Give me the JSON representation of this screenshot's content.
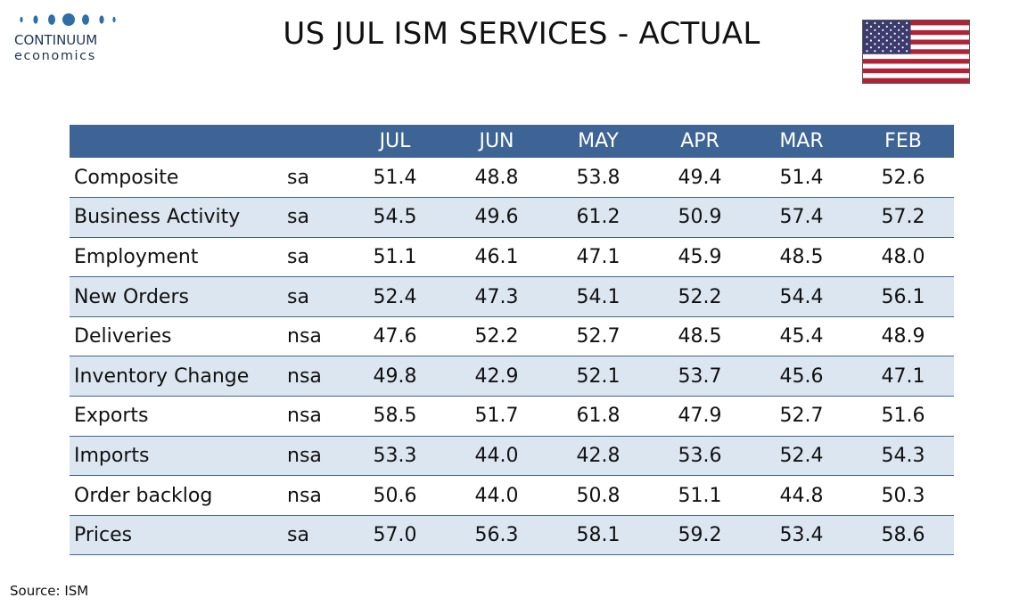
{
  "brand": {
    "name": "CONTINUUM",
    "sub": "economics",
    "color": "#1d3556",
    "dot_color": "#2f6ea8"
  },
  "title": "US JUL ISM SERVICES - ACTUAL",
  "flag": {
    "icon": "us-flag-icon",
    "red": "#b22234",
    "blue": "#3c3b6e"
  },
  "colors": {
    "header_bg": "#3e6496",
    "band_bg": "#dce6f1"
  },
  "chart_data": {
    "type": "table",
    "columns": [
      "",
      "",
      "JUL",
      "JUN",
      "MAY",
      "APR",
      "MAR",
      "FEB"
    ],
    "rows": [
      {
        "label": "Composite",
        "adj": "sa",
        "values": [
          "51.4",
          "48.8",
          "53.8",
          "49.4",
          "51.4",
          "52.6"
        ]
      },
      {
        "label": "Business Activity",
        "adj": "sa",
        "values": [
          "54.5",
          "49.6",
          "61.2",
          "50.9",
          "57.4",
          "57.2"
        ]
      },
      {
        "label": "Employment",
        "adj": "sa",
        "values": [
          "51.1",
          "46.1",
          "47.1",
          "45.9",
          "48.5",
          "48.0"
        ]
      },
      {
        "label": "New Orders",
        "adj": "sa",
        "values": [
          "52.4",
          "47.3",
          "54.1",
          "52.2",
          "54.4",
          "56.1"
        ]
      },
      {
        "label": "Deliveries",
        "adj": "nsa",
        "values": [
          "47.6",
          "52.2",
          "52.7",
          "48.5",
          "45.4",
          "48.9"
        ]
      },
      {
        "label": "Inventory Change",
        "adj": "nsa",
        "values": [
          "49.8",
          "42.9",
          "52.1",
          "53.7",
          "45.6",
          "47.1"
        ]
      },
      {
        "label": "Exports",
        "adj": "nsa",
        "values": [
          "58.5",
          "51.7",
          "61.8",
          "47.9",
          "52.7",
          "51.6"
        ]
      },
      {
        "label": "Imports",
        "adj": "nsa",
        "values": [
          "53.3",
          "44.0",
          "42.8",
          "53.6",
          "52.4",
          "54.3"
        ]
      },
      {
        "label": "Order backlog",
        "adj": "nsa",
        "values": [
          "50.6",
          "44.0",
          "50.8",
          "51.1",
          "44.8",
          "50.3"
        ]
      },
      {
        "label": "Prices",
        "adj": "sa",
        "values": [
          "57.0",
          "56.3",
          "58.1",
          "59.2",
          "53.4",
          "58.6"
        ]
      }
    ]
  },
  "source": "Source: ISM"
}
